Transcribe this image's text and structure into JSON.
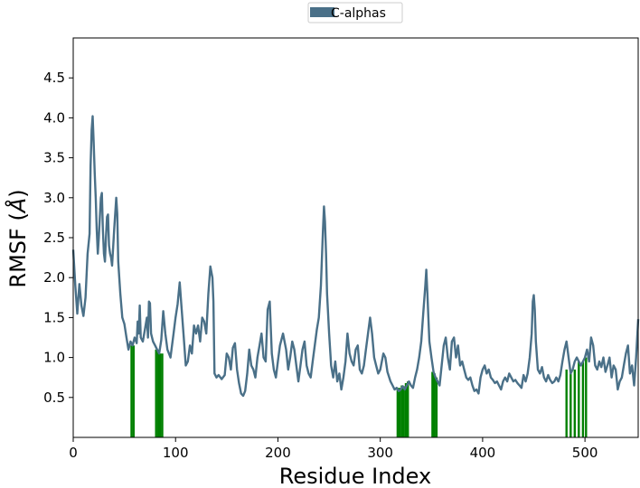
{
  "chart_data": {
    "type": "line",
    "xlabel": "Residue Index",
    "ylabel_main": "RMSF (",
    "ylabel_unit": "Å",
    "ylabel_close": ")",
    "xlim": [
      0,
      552
    ],
    "ylim": [
      0,
      5.0
    ],
    "xticks": [
      0,
      100,
      200,
      300,
      400,
      500
    ],
    "yticks": [
      0.5,
      1.0,
      1.5,
      2.0,
      2.5,
      3.0,
      3.5,
      4.0,
      4.5
    ],
    "grid": false,
    "legend": {
      "position": "top-center",
      "entries": [
        "C-alphas"
      ]
    },
    "series": [
      {
        "name": "C-alphas",
        "color": "#4a7088",
        "points": [
          [
            0,
            2.35
          ],
          [
            2,
            1.9
          ],
          [
            4,
            1.55
          ],
          [
            6,
            1.92
          ],
          [
            8,
            1.65
          ],
          [
            10,
            1.52
          ],
          [
            12,
            1.75
          ],
          [
            14,
            2.3
          ],
          [
            16,
            2.55
          ],
          [
            17,
            3.4
          ],
          [
            18,
            3.85
          ],
          [
            19,
            4.02
          ],
          [
            20,
            3.7
          ],
          [
            21,
            3.3
          ],
          [
            22,
            3.0
          ],
          [
            23,
            2.6
          ],
          [
            24,
            2.3
          ],
          [
            25,
            2.5
          ],
          [
            26,
            2.75
          ],
          [
            27,
            3.0
          ],
          [
            28,
            3.06
          ],
          [
            29,
            2.6
          ],
          [
            30,
            2.3
          ],
          [
            31,
            2.2
          ],
          [
            32,
            2.5
          ],
          [
            33,
            2.76
          ],
          [
            34,
            2.79
          ],
          [
            35,
            2.4
          ],
          [
            36,
            2.3
          ],
          [
            37,
            2.25
          ],
          [
            38,
            2.15
          ],
          [
            40,
            2.6
          ],
          [
            42,
            3.0
          ],
          [
            43,
            2.8
          ],
          [
            44,
            2.2
          ],
          [
            46,
            1.8
          ],
          [
            48,
            1.5
          ],
          [
            50,
            1.42
          ],
          [
            52,
            1.25
          ],
          [
            54,
            1.1
          ],
          [
            56,
            1.2
          ],
          [
            58,
            1.15
          ],
          [
            60,
            1.25
          ],
          [
            62,
            1.18
          ],
          [
            63,
            1.45
          ],
          [
            64,
            1.3
          ],
          [
            65,
            1.65
          ],
          [
            66,
            1.25
          ],
          [
            68,
            1.2
          ],
          [
            70,
            1.35
          ],
          [
            72,
            1.5
          ],
          [
            73,
            1.25
          ],
          [
            74,
            1.7
          ],
          [
            75,
            1.68
          ],
          [
            76,
            1.3
          ],
          [
            78,
            1.2
          ],
          [
            80,
            1.15
          ],
          [
            82,
            1.1
          ],
          [
            84,
            1.05
          ],
          [
            86,
            1.22
          ],
          [
            88,
            1.58
          ],
          [
            90,
            1.3
          ],
          [
            92,
            1.1
          ],
          [
            95,
            1.0
          ],
          [
            98,
            1.3
          ],
          [
            100,
            1.5
          ],
          [
            102,
            1.67
          ],
          [
            104,
            1.94
          ],
          [
            106,
            1.6
          ],
          [
            108,
            1.25
          ],
          [
            110,
            0.9
          ],
          [
            112,
            0.95
          ],
          [
            114,
            1.15
          ],
          [
            116,
            1.05
          ],
          [
            118,
            1.4
          ],
          [
            120,
            1.3
          ],
          [
            122,
            1.4
          ],
          [
            124,
            1.2
          ],
          [
            126,
            1.5
          ],
          [
            128,
            1.45
          ],
          [
            130,
            1.3
          ],
          [
            132,
            1.8
          ],
          [
            134,
            2.14
          ],
          [
            136,
            2.0
          ],
          [
            137,
            1.7
          ],
          [
            138,
            0.8
          ],
          [
            140,
            0.75
          ],
          [
            142,
            0.78
          ],
          [
            145,
            0.73
          ],
          [
            148,
            0.78
          ],
          [
            150,
            1.05
          ],
          [
            152,
            1.0
          ],
          [
            154,
            0.85
          ],
          [
            156,
            1.12
          ],
          [
            158,
            1.18
          ],
          [
            160,
            0.85
          ],
          [
            162,
            0.68
          ],
          [
            164,
            0.55
          ],
          [
            166,
            0.52
          ],
          [
            168,
            0.58
          ],
          [
            170,
            0.8
          ],
          [
            172,
            1.1
          ],
          [
            174,
            0.9
          ],
          [
            176,
            0.85
          ],
          [
            178,
            0.75
          ],
          [
            180,
            1.0
          ],
          [
            182,
            1.15
          ],
          [
            184,
            1.3
          ],
          [
            186,
            1.0
          ],
          [
            188,
            0.95
          ],
          [
            190,
            1.6
          ],
          [
            192,
            1.7
          ],
          [
            194,
            1.05
          ],
          [
            196,
            0.85
          ],
          [
            198,
            0.75
          ],
          [
            200,
            0.95
          ],
          [
            202,
            1.15
          ],
          [
            205,
            1.3
          ],
          [
            208,
            1.1
          ],
          [
            210,
            0.85
          ],
          [
            212,
            1.0
          ],
          [
            214,
            1.2
          ],
          [
            216,
            1.1
          ],
          [
            218,
            0.9
          ],
          [
            220,
            0.7
          ],
          [
            222,
            0.9
          ],
          [
            224,
            1.1
          ],
          [
            226,
            1.2
          ],
          [
            228,
            0.9
          ],
          [
            230,
            0.8
          ],
          [
            232,
            0.75
          ],
          [
            234,
            0.95
          ],
          [
            236,
            1.15
          ],
          [
            238,
            1.35
          ],
          [
            240,
            1.5
          ],
          [
            242,
            1.9
          ],
          [
            244,
            2.6
          ],
          [
            245,
            2.89
          ],
          [
            246,
            2.7
          ],
          [
            247,
            2.3
          ],
          [
            248,
            1.8
          ],
          [
            250,
            1.3
          ],
          [
            252,
            0.9
          ],
          [
            254,
            0.75
          ],
          [
            256,
            0.95
          ],
          [
            258,
            0.7
          ],
          [
            260,
            0.8
          ],
          [
            262,
            0.6
          ],
          [
            264,
            0.75
          ],
          [
            266,
            0.95
          ],
          [
            268,
            1.3
          ],
          [
            270,
            1.05
          ],
          [
            272,
            0.95
          ],
          [
            274,
            0.9
          ],
          [
            276,
            1.1
          ],
          [
            278,
            1.15
          ],
          [
            280,
            0.85
          ],
          [
            282,
            0.8
          ],
          [
            284,
            0.9
          ],
          [
            286,
            1.1
          ],
          [
            288,
            1.3
          ],
          [
            290,
            1.5
          ],
          [
            292,
            1.3
          ],
          [
            294,
            1.0
          ],
          [
            296,
            0.9
          ],
          [
            298,
            0.8
          ],
          [
            300,
            0.85
          ],
          [
            303,
            1.05
          ],
          [
            305,
            1.0
          ],
          [
            307,
            0.82
          ],
          [
            310,
            0.7
          ],
          [
            312,
            0.65
          ],
          [
            314,
            0.6
          ],
          [
            316,
            0.62
          ],
          [
            318,
            0.58
          ],
          [
            320,
            0.6
          ],
          [
            322,
            0.64
          ],
          [
            324,
            0.6
          ],
          [
            326,
            0.65
          ],
          [
            328,
            0.7
          ],
          [
            330,
            0.65
          ],
          [
            332,
            0.62
          ],
          [
            334,
            0.75
          ],
          [
            336,
            0.85
          ],
          [
            338,
            1.0
          ],
          [
            340,
            1.2
          ],
          [
            342,
            1.55
          ],
          [
            344,
            1.9
          ],
          [
            345,
            2.1
          ],
          [
            346,
            1.8
          ],
          [
            347,
            1.5
          ],
          [
            348,
            1.2
          ],
          [
            350,
            1.0
          ],
          [
            352,
            0.82
          ],
          [
            354,
            0.75
          ],
          [
            356,
            0.7
          ],
          [
            358,
            0.65
          ],
          [
            360,
            0.9
          ],
          [
            362,
            1.15
          ],
          [
            364,
            1.25
          ],
          [
            366,
            1.0
          ],
          [
            368,
            0.85
          ],
          [
            370,
            1.2
          ],
          [
            372,
            1.25
          ],
          [
            374,
            1.0
          ],
          [
            376,
            1.15
          ],
          [
            378,
            0.9
          ],
          [
            380,
            0.95
          ],
          [
            382,
            0.85
          ],
          [
            384,
            0.75
          ],
          [
            386,
            0.72
          ],
          [
            388,
            0.75
          ],
          [
            390,
            0.65
          ],
          [
            392,
            0.58
          ],
          [
            394,
            0.6
          ],
          [
            396,
            0.55
          ],
          [
            398,
            0.75
          ],
          [
            400,
            0.85
          ],
          [
            402,
            0.9
          ],
          [
            404,
            0.8
          ],
          [
            406,
            0.85
          ],
          [
            408,
            0.75
          ],
          [
            410,
            0.72
          ],
          [
            412,
            0.68
          ],
          [
            414,
            0.7
          ],
          [
            416,
            0.65
          ],
          [
            418,
            0.6
          ],
          [
            420,
            0.7
          ],
          [
            422,
            0.75
          ],
          [
            424,
            0.7
          ],
          [
            426,
            0.8
          ],
          [
            428,
            0.75
          ],
          [
            430,
            0.7
          ],
          [
            432,
            0.72
          ],
          [
            434,
            0.68
          ],
          [
            436,
            0.65
          ],
          [
            438,
            0.62
          ],
          [
            440,
            0.78
          ],
          [
            442,
            0.7
          ],
          [
            444,
            0.8
          ],
          [
            446,
            1.0
          ],
          [
            448,
            1.3
          ],
          [
            449,
            1.7
          ],
          [
            450,
            1.78
          ],
          [
            451,
            1.6
          ],
          [
            452,
            1.2
          ],
          [
            454,
            0.85
          ],
          [
            456,
            0.8
          ],
          [
            458,
            0.88
          ],
          [
            460,
            0.75
          ],
          [
            462,
            0.7
          ],
          [
            464,
            0.78
          ],
          [
            466,
            0.72
          ],
          [
            468,
            0.68
          ],
          [
            470,
            0.7
          ],
          [
            472,
            0.75
          ],
          [
            474,
            0.7
          ],
          [
            476,
            0.78
          ],
          [
            478,
            0.95
          ],
          [
            480,
            1.1
          ],
          [
            482,
            1.2
          ],
          [
            484,
            1.0
          ],
          [
            486,
            0.8
          ],
          [
            488,
            0.85
          ],
          [
            490,
            0.95
          ],
          [
            492,
            1.0
          ],
          [
            494,
            0.95
          ],
          [
            496,
            0.9
          ],
          [
            498,
            0.95
          ],
          [
            500,
            1.0
          ],
          [
            502,
            1.1
          ],
          [
            504,
            0.95
          ],
          [
            506,
            1.25
          ],
          [
            508,
            1.15
          ],
          [
            510,
            0.9
          ],
          [
            512,
            0.85
          ],
          [
            514,
            0.95
          ],
          [
            516,
            0.88
          ],
          [
            518,
            1.0
          ],
          [
            520,
            0.82
          ],
          [
            522,
            0.9
          ],
          [
            524,
            1.0
          ],
          [
            526,
            0.75
          ],
          [
            528,
            0.9
          ],
          [
            530,
            0.85
          ],
          [
            532,
            0.6
          ],
          [
            534,
            0.7
          ],
          [
            536,
            0.75
          ],
          [
            538,
            0.9
          ],
          [
            540,
            1.05
          ],
          [
            542,
            1.15
          ],
          [
            544,
            0.8
          ],
          [
            546,
            0.9
          ],
          [
            548,
            0.65
          ],
          [
            550,
            1.0
          ],
          [
            552,
            1.48
          ]
        ]
      }
    ],
    "highlight_bars": {
      "color": "#008000",
      "positions": [
        57,
        59,
        81,
        83,
        85,
        87,
        317,
        319,
        321,
        323,
        325,
        327,
        351,
        353,
        355,
        482,
        486,
        490,
        494,
        498,
        501
      ],
      "heights": [
        1.15,
        1.15,
        1.1,
        1.1,
        1.05,
        1.05,
        0.62,
        0.62,
        0.65,
        0.64,
        0.68,
        0.7,
        0.82,
        0.8,
        0.75,
        0.85,
        0.8,
        0.85,
        0.95,
        0.95,
        1.0
      ]
    }
  }
}
